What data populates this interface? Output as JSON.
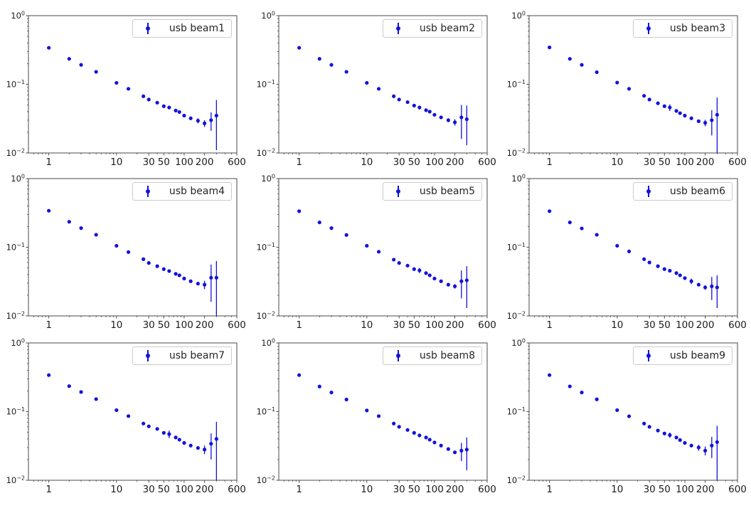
{
  "style": {
    "marker_color": "#1212dd",
    "axis_color": "#4a4a4a",
    "tick_label_color": "#1c1c1c",
    "legend_border_color": "#cbcbcb",
    "background_color": "#ffffff"
  },
  "axes": {
    "xscale": "log",
    "yscale": "log",
    "xlim": [
      0.5,
      600
    ],
    "ylim": [
      0.01,
      1
    ],
    "x_major_ticks": [
      1,
      10,
      30,
      50,
      100,
      200,
      600
    ],
    "x_major_labels": [
      "1",
      "10",
      "30",
      "50",
      "100",
      "200",
      "600"
    ],
    "x_minor_ticks": [
      0.6,
      0.7,
      0.8,
      0.9,
      2,
      3,
      4,
      5,
      6,
      7,
      8,
      9,
      20,
      40,
      60,
      70,
      80,
      90,
      300,
      400,
      500
    ],
    "y_major_ticks": [
      1,
      0.1,
      0.01
    ],
    "y_major_labels": [
      {
        "base": "10",
        "exp": "0"
      },
      {
        "base": "10",
        "exp": "−1"
      },
      {
        "base": "10",
        "exp": "−2"
      }
    ],
    "y_minor_ticks": [
      0.02,
      0.03,
      0.04,
      0.05,
      0.06,
      0.07,
      0.08,
      0.09,
      0.2,
      0.3,
      0.4,
      0.5,
      0.6,
      0.7,
      0.8,
      0.9
    ],
    "grid": false,
    "legend_position": "upper right"
  },
  "chart_data": [
    {
      "type": "scatter",
      "legend": "usb beam1",
      "x": [
        1,
        2,
        3,
        5,
        10,
        15,
        25,
        30,
        40,
        50,
        60,
        75,
        85,
        100,
        125,
        160,
        200,
        250,
        300
      ],
      "y": [
        0.34,
        0.235,
        0.192,
        0.152,
        0.105,
        0.086,
        0.067,
        0.06,
        0.054,
        0.048,
        0.046,
        0.0415,
        0.0395,
        0.035,
        0.032,
        0.0295,
        0.027,
        0.03,
        0.035
      ],
      "yerr": [
        0.0008,
        0.0008,
        0.0008,
        0.0008,
        0.0008,
        0.0008,
        0.0008,
        0.0008,
        0.0008,
        0.0008,
        0.003,
        0.0008,
        0.0008,
        0.0008,
        0.0008,
        0.0025,
        0.003,
        0.009,
        0.024
      ]
    },
    {
      "type": "scatter",
      "legend": "usb beam2",
      "x": [
        1,
        2,
        3,
        5,
        10,
        15,
        25,
        30,
        40,
        50,
        60,
        75,
        85,
        100,
        125,
        160,
        200,
        250,
        300
      ],
      "y": [
        0.34,
        0.235,
        0.192,
        0.152,
        0.105,
        0.086,
        0.067,
        0.06,
        0.055,
        0.049,
        0.046,
        0.042,
        0.04,
        0.036,
        0.033,
        0.03,
        0.028,
        0.033,
        0.031
      ],
      "yerr": [
        0.0008,
        0.0008,
        0.0008,
        0.0008,
        0.0008,
        0.0008,
        0.0008,
        0.0008,
        0.0008,
        0.0008,
        0.003,
        0.0008,
        0.0008,
        0.0008,
        0.0008,
        0.002,
        0.003,
        0.017,
        0.018
      ]
    },
    {
      "type": "scatter",
      "legend": "usb beam3",
      "x": [
        1,
        2,
        3,
        5,
        10,
        15,
        25,
        30,
        40,
        50,
        60,
        75,
        85,
        100,
        125,
        160,
        200,
        250,
        300
      ],
      "y": [
        0.345,
        0.235,
        0.192,
        0.15,
        0.106,
        0.086,
        0.068,
        0.06,
        0.053,
        0.048,
        0.046,
        0.041,
        0.038,
        0.035,
        0.032,
        0.029,
        0.0275,
        0.03,
        0.036
      ],
      "yerr": [
        0.0008,
        0.0008,
        0.0008,
        0.0008,
        0.0008,
        0.0008,
        0.0008,
        0.0008,
        0.0008,
        0.0008,
        0.005,
        0.0008,
        0.0008,
        0.0008,
        0.0008,
        0.0008,
        0.003,
        0.012,
        0.028
      ]
    },
    {
      "type": "scatter",
      "legend": "usb beam4",
      "x": [
        1,
        2,
        3,
        5,
        10,
        15,
        25,
        30,
        40,
        50,
        60,
        75,
        85,
        100,
        125,
        160,
        200,
        250,
        300
      ],
      "y": [
        0.34,
        0.235,
        0.19,
        0.152,
        0.105,
        0.085,
        0.067,
        0.059,
        0.053,
        0.048,
        0.045,
        0.041,
        0.039,
        0.035,
        0.032,
        0.0295,
        0.0285,
        0.036,
        0.036
      ],
      "yerr": [
        0.0008,
        0.0008,
        0.0008,
        0.0008,
        0.0008,
        0.0008,
        0.0008,
        0.0008,
        0.0008,
        0.0008,
        0.0008,
        0.0008,
        0.0008,
        0.0008,
        0.0008,
        0.0008,
        0.004,
        0.02,
        0.027
      ]
    },
    {
      "type": "scatter",
      "legend": "usb beam5",
      "x": [
        1,
        2,
        3,
        5,
        10,
        15,
        25,
        30,
        40,
        50,
        60,
        75,
        85,
        100,
        125,
        160,
        200,
        250,
        300
      ],
      "y": [
        0.335,
        0.23,
        0.19,
        0.151,
        0.105,
        0.086,
        0.066,
        0.059,
        0.054,
        0.048,
        0.046,
        0.042,
        0.039,
        0.035,
        0.032,
        0.0285,
        0.027,
        0.032,
        0.033
      ],
      "yerr": [
        0.0008,
        0.0008,
        0.0008,
        0.0008,
        0.0008,
        0.0008,
        0.0008,
        0.0008,
        0.0008,
        0.0008,
        0.004,
        0.0008,
        0.0008,
        0.0008,
        0.0008,
        0.0008,
        0.002,
        0.014,
        0.02
      ]
    },
    {
      "type": "scatter",
      "legend": "usb beam6",
      "x": [
        1,
        2,
        3,
        5,
        10,
        15,
        25,
        30,
        40,
        50,
        60,
        75,
        85,
        100,
        125,
        160,
        200,
        250,
        300
      ],
      "y": [
        0.335,
        0.23,
        0.188,
        0.152,
        0.105,
        0.087,
        0.067,
        0.06,
        0.053,
        0.048,
        0.0455,
        0.042,
        0.039,
        0.0355,
        0.032,
        0.0285,
        0.026,
        0.027,
        0.026
      ],
      "yerr": [
        0.0008,
        0.0008,
        0.0008,
        0.0008,
        0.0008,
        0.0008,
        0.0008,
        0.0008,
        0.0008,
        0.0008,
        0.0008,
        0.0008,
        0.0008,
        0.0008,
        0.003,
        0.0008,
        0.002,
        0.01,
        0.013
      ]
    },
    {
      "type": "scatter",
      "legend": "usb beam7",
      "x": [
        1,
        2,
        3,
        5,
        10,
        15,
        25,
        30,
        40,
        50,
        60,
        75,
        85,
        100,
        125,
        160,
        200,
        250,
        300
      ],
      "y": [
        0.34,
        0.235,
        0.193,
        0.152,
        0.105,
        0.086,
        0.067,
        0.061,
        0.056,
        0.049,
        0.047,
        0.042,
        0.039,
        0.035,
        0.032,
        0.0295,
        0.028,
        0.034,
        0.04
      ],
      "yerr": [
        0.0008,
        0.0008,
        0.0008,
        0.0008,
        0.0008,
        0.0008,
        0.0008,
        0.0008,
        0.0008,
        0.0008,
        0.006,
        0.0008,
        0.0008,
        0.0008,
        0.0008,
        0.0008,
        0.004,
        0.014,
        0.031
      ]
    },
    {
      "type": "scatter",
      "legend": "usb beam8",
      "x": [
        1,
        2,
        3,
        5,
        10,
        15,
        25,
        30,
        40,
        50,
        60,
        75,
        85,
        100,
        125,
        160,
        200,
        250,
        300
      ],
      "y": [
        0.34,
        0.232,
        0.19,
        0.15,
        0.104,
        0.086,
        0.067,
        0.06,
        0.054,
        0.049,
        0.045,
        0.042,
        0.039,
        0.0355,
        0.032,
        0.0285,
        0.0255,
        0.027,
        0.028
      ],
      "yerr": [
        0.0008,
        0.0008,
        0.0008,
        0.0008,
        0.0008,
        0.0008,
        0.0008,
        0.0008,
        0.0008,
        0.0008,
        0.0008,
        0.0008,
        0.0008,
        0.0008,
        0.0008,
        0.0008,
        0.0008,
        0.008,
        0.014
      ]
    },
    {
      "type": "scatter",
      "legend": "usb beam9",
      "x": [
        1,
        2,
        3,
        5,
        10,
        15,
        25,
        30,
        40,
        50,
        60,
        75,
        85,
        100,
        125,
        160,
        200,
        250,
        300
      ],
      "y": [
        0.34,
        0.233,
        0.19,
        0.151,
        0.105,
        0.0855,
        0.067,
        0.06,
        0.053,
        0.048,
        0.0455,
        0.042,
        0.0385,
        0.035,
        0.032,
        0.03,
        0.027,
        0.032,
        0.036
      ],
      "yerr": [
        0.0008,
        0.0008,
        0.0008,
        0.0008,
        0.0008,
        0.0008,
        0.0008,
        0.0008,
        0.0008,
        0.0008,
        0.004,
        0.0008,
        0.0008,
        0.0008,
        0.0008,
        0.003,
        0.004,
        0.011,
        0.026
      ]
    }
  ]
}
